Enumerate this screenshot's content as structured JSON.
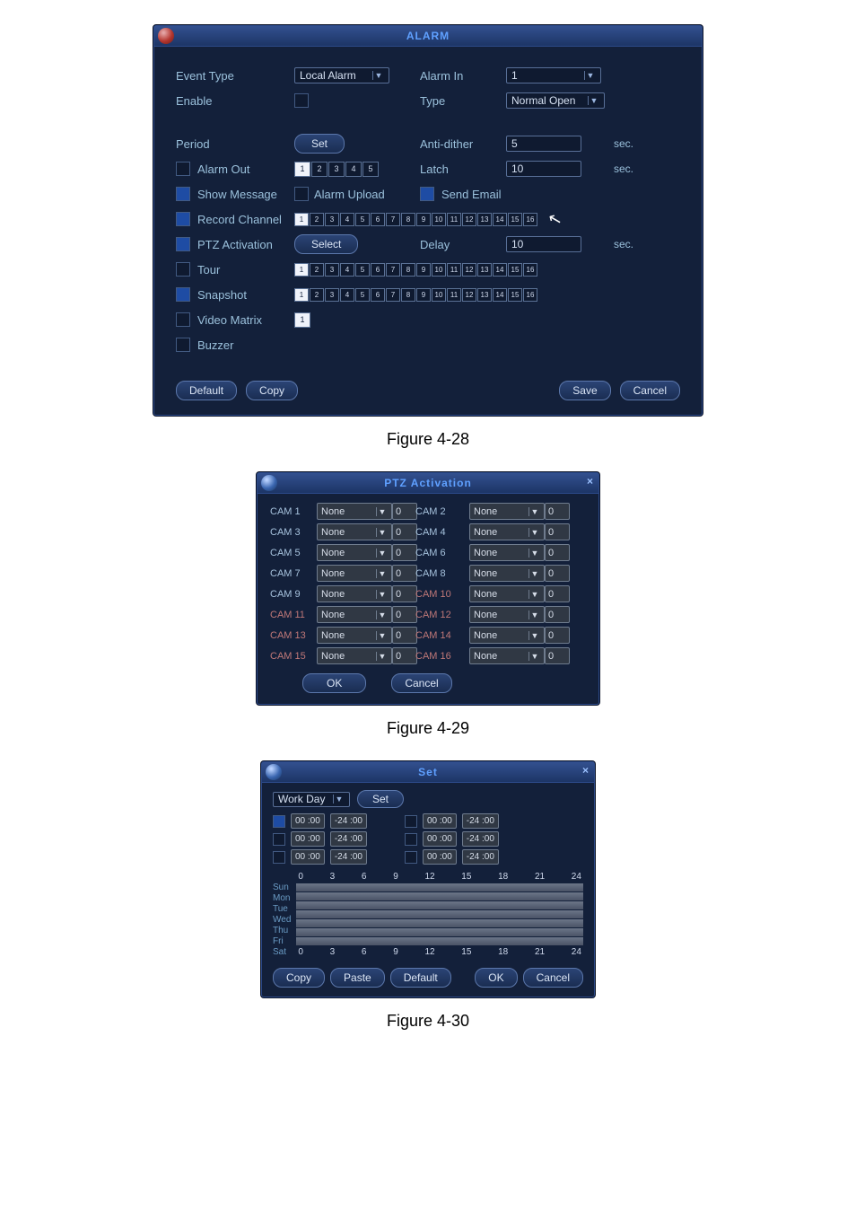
{
  "captions": {
    "fig28": "Figure 4-28",
    "fig29": "Figure 4-29",
    "fig30": "Figure 4-30"
  },
  "alarm": {
    "title": "ALARM",
    "labels": {
      "event_type": "Event Type",
      "enable": "Enable",
      "alarm_in": "Alarm In",
      "type": "Type",
      "period": "Period",
      "anti_dither": "Anti-dither",
      "alarm_out": "Alarm Out",
      "latch": "Latch",
      "show_message": "Show Message",
      "alarm_upload": "Alarm Upload",
      "send_email": "Send Email",
      "record_channel": "Record Channel",
      "ptz_activation": "PTZ Activation",
      "delay": "Delay",
      "tour": "Tour",
      "snapshot": "Snapshot",
      "video_matrix": "Video Matrix",
      "buzzer": "Buzzer",
      "sec": "sec."
    },
    "fields": {
      "event_type_value": "Local Alarm",
      "alarm_in_value": "1",
      "type_value": "Normal Open",
      "period_btn": "Set",
      "anti_dither_value": "5",
      "latch_value": "10",
      "ptz_btn": "Select",
      "delay_value": "10"
    },
    "check_state": {
      "enable": false,
      "alarm_out": false,
      "show_message": true,
      "alarm_upload": false,
      "send_email": true,
      "record_channel": true,
      "ptz_activation": true,
      "tour": false,
      "snapshot": true,
      "video_matrix": false,
      "buzzer": false
    },
    "alarm_out_channels": {
      "count": 5,
      "on": [
        1
      ]
    },
    "record_channels": {
      "count": 16,
      "on": [
        1
      ]
    },
    "tour_channels": {
      "count": 16,
      "on": [
        1
      ]
    },
    "snapshot_channels": {
      "count": 16,
      "on": [
        1
      ]
    },
    "video_matrix_channels": {
      "count": 1,
      "on": [
        1
      ]
    },
    "buttons": {
      "default": "Default",
      "copy": "Copy",
      "save": "Save",
      "cancel": "Cancel"
    },
    "colors": {
      "bg": "#13203a",
      "border": "#2c4a8a",
      "label": "#9bc1dc",
      "accent": "#5fa0ff"
    }
  },
  "ptz": {
    "title": "PTZ Activation",
    "rows": [
      {
        "l": "CAM 1",
        "lv": "None",
        "ln": "0",
        "r": "CAM 2",
        "rv": "None",
        "rn": "0"
      },
      {
        "l": "CAM 3",
        "lv": "None",
        "ln": "0",
        "r": "CAM 4",
        "rv": "None",
        "rn": "0"
      },
      {
        "l": "CAM 5",
        "lv": "None",
        "ln": "0",
        "r": "CAM 6",
        "rv": "None",
        "rn": "0"
      },
      {
        "l": "CAM 7",
        "lv": "None",
        "ln": "0",
        "r": "CAM 8",
        "rv": "None",
        "rn": "0"
      },
      {
        "l": "CAM 9",
        "lv": "None",
        "ln": "0",
        "r": "CAM 10",
        "rv": "None",
        "rn": "0",
        "rred": true
      },
      {
        "l": "CAM 11",
        "lv": "None",
        "ln": "0",
        "r": "CAM 12",
        "rv": "None",
        "rn": "0",
        "lred": true,
        "rred": true
      },
      {
        "l": "CAM 13",
        "lv": "None",
        "ln": "0",
        "r": "CAM 14",
        "rv": "None",
        "rn": "0",
        "lred": true,
        "rred": true
      },
      {
        "l": "CAM 15",
        "lv": "None",
        "ln": "0",
        "r": "CAM 16",
        "rv": "None",
        "rn": "0",
        "lred": true,
        "rred": true
      }
    ],
    "buttons": {
      "ok": "OK",
      "cancel": "Cancel"
    }
  },
  "set": {
    "title": "Set",
    "workday_label": "Work Day",
    "set_btn": "Set",
    "time_rows": [
      {
        "l_on": true,
        "l_from": "00 :00",
        "l_to": "-24 :00",
        "r_on": false,
        "r_from": "00 :00",
        "r_to": "-24 :00"
      },
      {
        "l_on": false,
        "l_from": "00 :00",
        "l_to": "-24 :00",
        "r_on": false,
        "r_from": "00 :00",
        "r_to": "-24 :00"
      },
      {
        "l_on": false,
        "l_from": "00 :00",
        "l_to": "-24 :00",
        "r_on": false,
        "r_from": "00 :00",
        "r_to": "-24 :00"
      }
    ],
    "days": [
      "Sun",
      "Mon",
      "Tue",
      "Wed",
      "Thu",
      "Fri",
      "Sat"
    ],
    "ticks": [
      "0",
      "3",
      "6",
      "9",
      "12",
      "15",
      "18",
      "21",
      "24"
    ],
    "buttons": {
      "copy": "Copy",
      "paste": "Paste",
      "default": "Default",
      "ok": "OK",
      "cancel": "Cancel"
    }
  }
}
